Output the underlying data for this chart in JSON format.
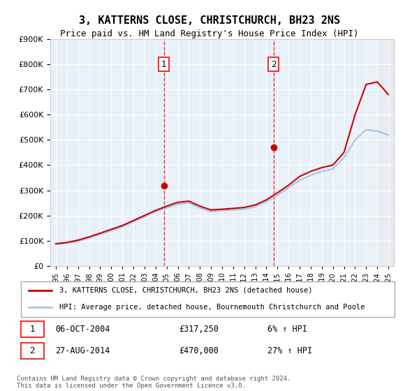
{
  "title": "3, KATTERNS CLOSE, CHRISTCHURCH, BH23 2NS",
  "subtitle": "Price paid vs. HM Land Registry's House Price Index (HPI)",
  "ylabel_ticks": [
    "£0",
    "£100K",
    "£200K",
    "£300K",
    "£400K",
    "£500K",
    "£600K",
    "£700K",
    "£800K",
    "£900K"
  ],
  "ylim": [
    0,
    900000
  ],
  "xlim": [
    1995,
    2025
  ],
  "x_years": [
    1995,
    1996,
    1997,
    1998,
    1999,
    2000,
    2001,
    2002,
    2003,
    2004,
    2005,
    2006,
    2007,
    2008,
    2009,
    2010,
    2011,
    2012,
    2013,
    2014,
    2015,
    2016,
    2017,
    2018,
    2019,
    2020,
    2021,
    2022,
    2023,
    2024,
    2025
  ],
  "hpi_values": [
    85000,
    90000,
    98000,
    110000,
    125000,
    140000,
    155000,
    175000,
    195000,
    215000,
    230000,
    245000,
    250000,
    230000,
    215000,
    220000,
    222000,
    225000,
    235000,
    255000,
    280000,
    310000,
    340000,
    360000,
    375000,
    385000,
    430000,
    500000,
    540000,
    535000,
    520000
  ],
  "property_values": [
    88000,
    93000,
    102000,
    115000,
    130000,
    145000,
    160000,
    180000,
    200000,
    220000,
    237000,
    252000,
    257000,
    237000,
    222000,
    225000,
    228000,
    232000,
    242000,
    262000,
    290000,
    320000,
    355000,
    375000,
    390000,
    400000,
    450000,
    600000,
    720000,
    730000,
    680000
  ],
  "transaction1_x": 2004.75,
  "transaction1_y": 317250,
  "transaction1_label": "1",
  "transaction1_date": "06-OCT-2004",
  "transaction1_price": "£317,250",
  "transaction1_hpi": "6% ↑ HPI",
  "transaction2_x": 2014.65,
  "transaction2_y": 470000,
  "transaction2_label": "2",
  "transaction2_date": "27-AUG-2014",
  "transaction2_price": "£470,000",
  "transaction2_hpi": "27% ↑ HPI",
  "line_color_property": "#cc0000",
  "line_color_hpi": "#aac4e0",
  "marker_color_property": "#cc0000",
  "background_plot": "#e8f0f8",
  "background_hatched": "#f0f0f0",
  "grid_color": "#ffffff",
  "legend_label_property": "3, KATTERNS CLOSE, CHRISTCHURCH, BH23 2NS (detached house)",
  "legend_label_hpi": "HPI: Average price, detached house, Bournemouth Christchurch and Poole",
  "footer_text": "Contains HM Land Registry data © Crown copyright and database right 2024.\nThis data is licensed under the Open Government Licence v3.0."
}
